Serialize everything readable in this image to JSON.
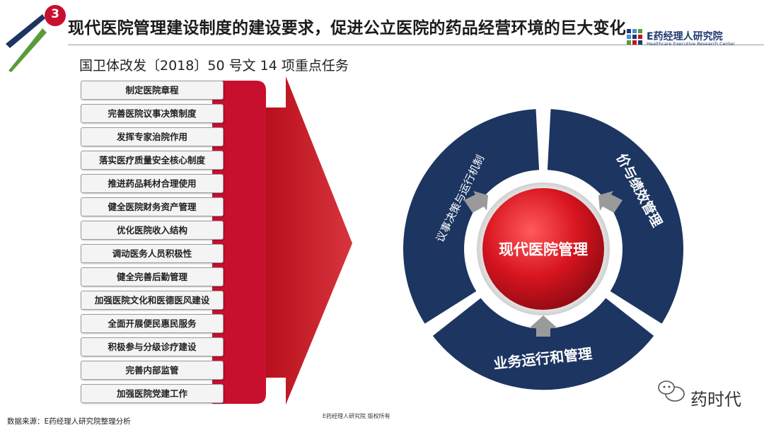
{
  "header": {
    "step_number": "3",
    "title": "现代医院管理建设制度的建设要求，促进公立医院的药品经营环境的巨大变化",
    "subtitle": "国卫体改发〔2018〕50 号文 14 项重点任务",
    "logo_text": "E药经理人研究院",
    "logo_subtext": "Healthcare Executive Research Center"
  },
  "tasks": [
    "制定医院章程",
    "完善医院议事决策制度",
    "发挥专家治院作用",
    "落实医疗质量安全核心制度",
    "推进药品耗材合理使用",
    "健全医院财务资产管理",
    "优化医院收入结构",
    "调动医务人员积极性",
    "健全完善后勤管理",
    "加强医院文化和医德医风建设",
    "全面开展便民惠民服务",
    "积极参与分级诊疗建设",
    "完善内部监管",
    "加强医院党建工作"
  ],
  "cycle": {
    "center": "现代医院管理",
    "segments": [
      "议事决策与运行机制",
      "价与绩效管理",
      "业务运行和管理"
    ]
  },
  "footer": {
    "source": "数据来源：E药经理人研究院整理分析",
    "copyright": "E药经理人研究院 版权所有",
    "watermark": "药时代"
  },
  "colors": {
    "brand_red": "#c8102e",
    "navy": "#1c3561",
    "accent_green": "#5a9a3a"
  }
}
